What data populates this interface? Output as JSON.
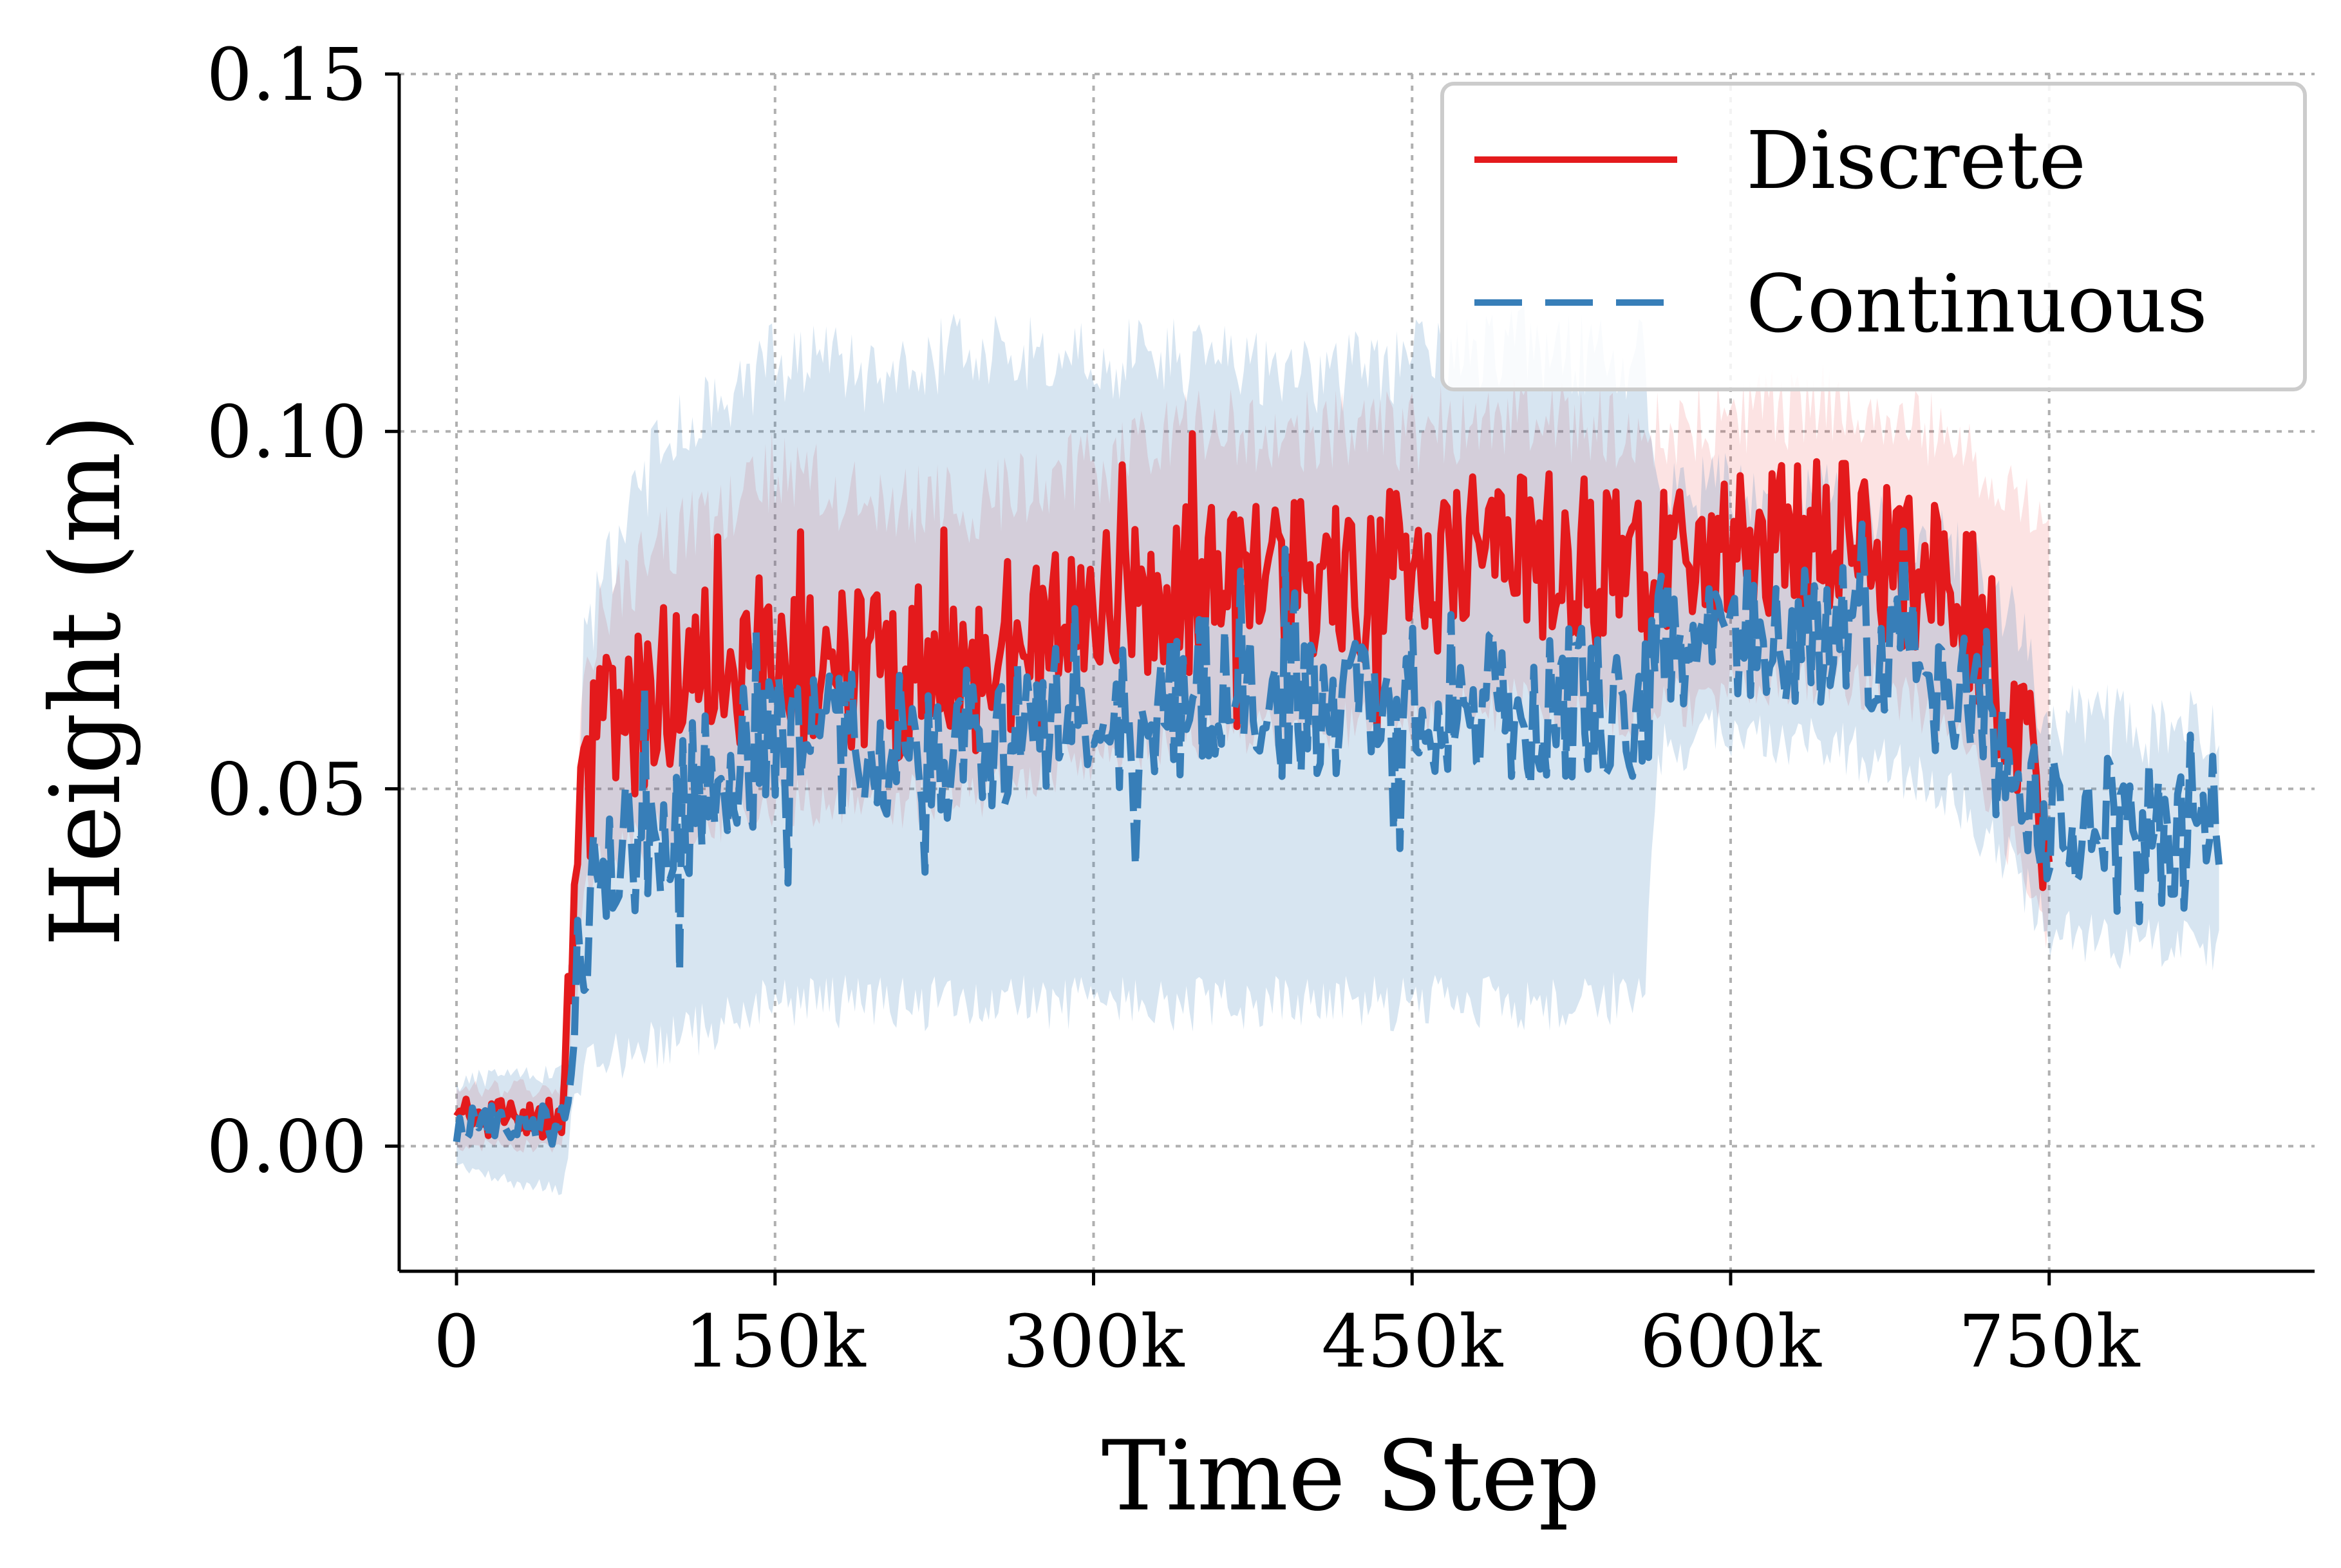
{
  "chart_data": {
    "type": "line",
    "title": "",
    "xlabel": "Time Step",
    "ylabel": "Height (m)",
    "xlim": [
      -27000,
      875000
    ],
    "ylim": [
      -0.0175,
      0.15
    ],
    "x_ticks": [
      {
        "value": 0,
        "label": "0"
      },
      {
        "value": 150000,
        "label": "150k"
      },
      {
        "value": 300000,
        "label": "300k"
      },
      {
        "value": 450000,
        "label": "450k"
      },
      {
        "value": 600000,
        "label": "600k"
      },
      {
        "value": 750000,
        "label": "750k"
      }
    ],
    "y_ticks": [
      {
        "value": 0.0,
        "label": "0.00"
      },
      {
        "value": 0.05,
        "label": "0.05"
      },
      {
        "value": 0.1,
        "label": "0.10"
      },
      {
        "value": 0.15,
        "label": "0.15"
      }
    ],
    "grid": true,
    "legend_position": "top-right",
    "series": [
      {
        "name": "Discrete",
        "color": "#e41a1c",
        "line_style": "solid",
        "x": [
          0,
          25000,
          50000,
          55000,
          60000,
          70000,
          100000,
          150000,
          200000,
          250000,
          300000,
          350000,
          400000,
          450000,
          500000,
          550000,
          600000,
          650000,
          700000,
          720000,
          750000
        ],
        "y": [
          0.004,
          0.004,
          0.004,
          0.025,
          0.05,
          0.058,
          0.065,
          0.068,
          0.066,
          0.067,
          0.075,
          0.078,
          0.079,
          0.08,
          0.083,
          0.081,
          0.083,
          0.084,
          0.08,
          0.072,
          0.05
        ],
        "lower": [
          0.0,
          0.0,
          0.0,
          0.015,
          0.035,
          0.04,
          0.045,
          0.048,
          0.048,
          0.05,
          0.055,
          0.058,
          0.058,
          0.06,
          0.062,
          0.06,
          0.064,
          0.066,
          0.06,
          0.05,
          0.03
        ],
        "upper": [
          0.008,
          0.008,
          0.008,
          0.04,
          0.07,
          0.075,
          0.085,
          0.095,
          0.09,
          0.09,
          0.095,
          0.1,
          0.1,
          0.1,
          0.102,
          0.1,
          0.102,
          0.104,
          0.1,
          0.095,
          0.085
        ]
      },
      {
        "name": "Continuous",
        "color": "#377eb8",
        "line_style": "dashed",
        "x": [
          0,
          25000,
          50000,
          55000,
          60000,
          70000,
          100000,
          150000,
          200000,
          250000,
          300000,
          350000,
          400000,
          450000,
          500000,
          540000,
          560000,
          565000,
          600000,
          650000,
          700000,
          730000,
          750000,
          800000,
          830000
        ],
        "y": [
          0.003,
          0.003,
          0.003,
          0.018,
          0.03,
          0.036,
          0.047,
          0.056,
          0.055,
          0.058,
          0.06,
          0.063,
          0.062,
          0.063,
          0.061,
          0.062,
          0.062,
          0.072,
          0.074,
          0.072,
          0.065,
          0.055,
          0.045,
          0.043,
          0.044
        ],
        "lower": [
          -0.003,
          -0.005,
          -0.006,
          0.008,
          0.01,
          0.012,
          0.015,
          0.02,
          0.02,
          0.02,
          0.02,
          0.02,
          0.02,
          0.02,
          0.02,
          0.02,
          0.022,
          0.055,
          0.058,
          0.056,
          0.05,
          0.04,
          0.03,
          0.028,
          0.028
        ],
        "upper": [
          0.009,
          0.01,
          0.01,
          0.035,
          0.07,
          0.08,
          0.1,
          0.11,
          0.108,
          0.112,
          0.11,
          0.11,
          0.108,
          0.11,
          0.112,
          0.11,
          0.11,
          0.09,
          0.092,
          0.09,
          0.085,
          0.075,
          0.06,
          0.058,
          0.058
        ]
      }
    ]
  }
}
